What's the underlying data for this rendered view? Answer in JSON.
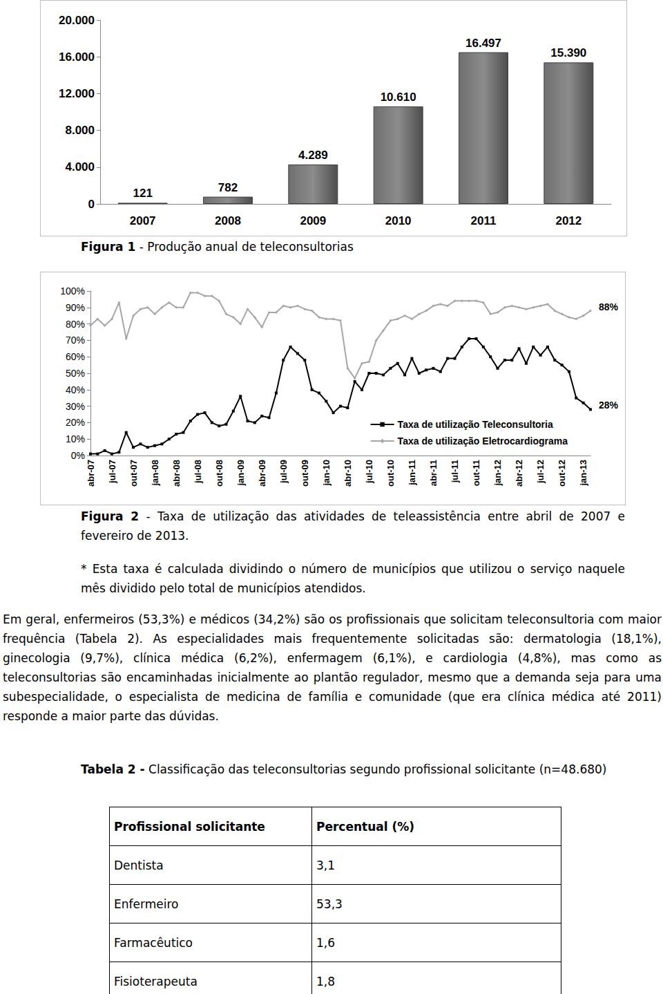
{
  "chart_data": [
    {
      "type": "bar",
      "categories": [
        "2007",
        "2008",
        "2009",
        "2010",
        "2011",
        "2012"
      ],
      "values": [
        121,
        782,
        4289,
        10610,
        16497,
        15390
      ],
      "value_labels": [
        "121",
        "782",
        "4.289",
        "10.610",
        "16.497",
        "15.390"
      ],
      "data_labels": true,
      "color": "#6f6f6f",
      "ylim": [
        0,
        20000
      ],
      "yticks": [
        0,
        {
          "value": 4000,
          "label": "4.000"
        },
        {
          "value": 8000,
          "label": "8.000"
        },
        {
          "value": 12000,
          "label": "12.000"
        },
        {
          "value": 16000,
          "label": "16.000"
        },
        {
          "value": 20000,
          "label": "20.000"
        }
      ],
      "grid": false
    },
    {
      "type": "line",
      "categories": [
        "abr-07",
        null,
        null,
        "jul-07",
        null,
        null,
        "out-07",
        null,
        null,
        "jan-08",
        null,
        null,
        "abr-08",
        null,
        null,
        "jul-08",
        null,
        null,
        "out-08",
        null,
        null,
        "jan-09",
        null,
        null,
        "abr-09",
        null,
        null,
        "jul-09",
        null,
        null,
        "out-09",
        null,
        null,
        "jan-10",
        null,
        null,
        "abr-10",
        null,
        null,
        "jul-10",
        null,
        null,
        "out-10",
        null,
        null,
        "jan-11",
        null,
        null,
        "abr-11",
        null,
        null,
        "jul-11",
        null,
        null,
        "out-11",
        null,
        null,
        "jan-12",
        null,
        null,
        "abr-12",
        null,
        null,
        "jul-12",
        null,
        null,
        "out-12",
        null,
        null,
        "jan-13",
        null
      ],
      "series": [
        {
          "name": "Taxa de utilização Teleconsultoria",
          "color": "#000000",
          "marker": "square",
          "values": [
            1,
            1,
            3,
            1,
            2,
            14,
            5,
            7,
            5,
            6,
            7,
            10,
            13,
            14,
            21,
            25,
            26,
            20,
            18,
            19,
            27,
            36,
            21,
            20,
            24,
            23,
            38,
            58,
            66,
            62,
            58,
            40,
            38,
            33,
            26,
            30,
            29,
            45,
            40,
            50,
            50,
            49,
            53,
            56,
            49,
            59,
            50,
            52,
            53,
            51,
            59,
            59,
            66,
            71,
            71,
            66,
            60,
            53,
            58,
            58,
            65,
            56,
            66,
            61,
            66,
            58,
            55,
            51,
            35,
            32,
            28
          ]
        },
        {
          "name": "Taxa de utilização Eletrocardiograma",
          "color": "#a6a6a6",
          "marker": "diamond",
          "values": [
            79,
            83,
            79,
            83,
            93,
            71,
            85,
            89,
            90,
            86,
            90,
            93,
            90,
            90,
            99,
            99,
            97,
            97,
            94,
            86,
            84,
            80,
            89,
            84,
            78,
            87,
            87,
            91,
            90,
            91,
            89,
            88,
            84,
            83,
            83,
            82,
            53,
            47,
            56,
            57,
            70,
            76,
            82,
            83,
            85,
            83,
            86,
            88,
            91,
            92,
            91,
            94,
            94,
            94,
            94,
            93,
            86,
            87,
            90,
            91,
            90,
            89,
            90,
            91,
            92,
            88,
            86,
            84,
            83,
            85,
            88
          ]
        }
      ],
      "annotations": [
        {
          "series": "Taxa de utilização Eletrocardiograma",
          "text": "88%"
        },
        {
          "series": "Taxa de utilização Teleconsultoria",
          "text": "28%"
        }
      ],
      "ylim": [
        0,
        100
      ],
      "yticks": [
        {
          "value": 0,
          "label": "0%"
        },
        {
          "value": 10,
          "label": "10%"
        },
        {
          "value": 20,
          "label": "20%"
        },
        {
          "value": 30,
          "label": "30%"
        },
        {
          "value": 40,
          "label": "40%"
        },
        {
          "value": 50,
          "label": "50%"
        },
        {
          "value": 60,
          "label": "60%"
        },
        {
          "value": 70,
          "label": "70%"
        },
        {
          "value": 80,
          "label": "80%"
        },
        {
          "value": 90,
          "label": "90%"
        },
        {
          "value": 100,
          "label": "100%"
        }
      ],
      "legend": "lower right",
      "grid": false
    }
  ],
  "document": {
    "figure1_caption": {
      "label": "Figura 1",
      "text": " - Produção anual de teleconsultorias"
    },
    "figure2_caption": {
      "label": "Figura 2",
      "text": " - Taxa de utilização das atividades de teleassistência entre abril de 2007 e fevereiro de 2013."
    },
    "note": "* Esta taxa é calculada dividindo o número de municípios que utilizou o serviço naquele mês dividido pelo total de municípios atendidos.",
    "paragraph": "Em geral, enfermeiros (53,3%) e médicos (34,2%) são os profissionais que solicitam teleconsultoria com maior frequência (Tabela 2). As especialidades mais frequentemente solicitadas são: dermatologia (18,1%), ginecologia (9,7%), clínica médica (6,2%), enfermagem (6,1%), e cardiologia (4,8%), mas como as teleconsultorias são encaminhadas inicialmente ao plantão regulador, mesmo que a demanda seja para uma subespecialidade, o especialista de medicina de família e comunidade (que era clínica médica até 2011) responde a maior parte das dúvidas.",
    "table_caption": {
      "label": "Tabela 2 -",
      "text": " Classificação das teleconsultorias segundo profissional solicitante (n=48.680)"
    },
    "table": {
      "header": [
        "Profissional solicitante",
        "Percentual (%)"
      ],
      "rows": [
        [
          "Dentista",
          "3,1"
        ],
        [
          "Enfermeiro",
          "53,3"
        ],
        [
          "Farmacêutico",
          "1,6"
        ],
        [
          "Fisioterapeuta",
          "1,8"
        ]
      ]
    }
  }
}
